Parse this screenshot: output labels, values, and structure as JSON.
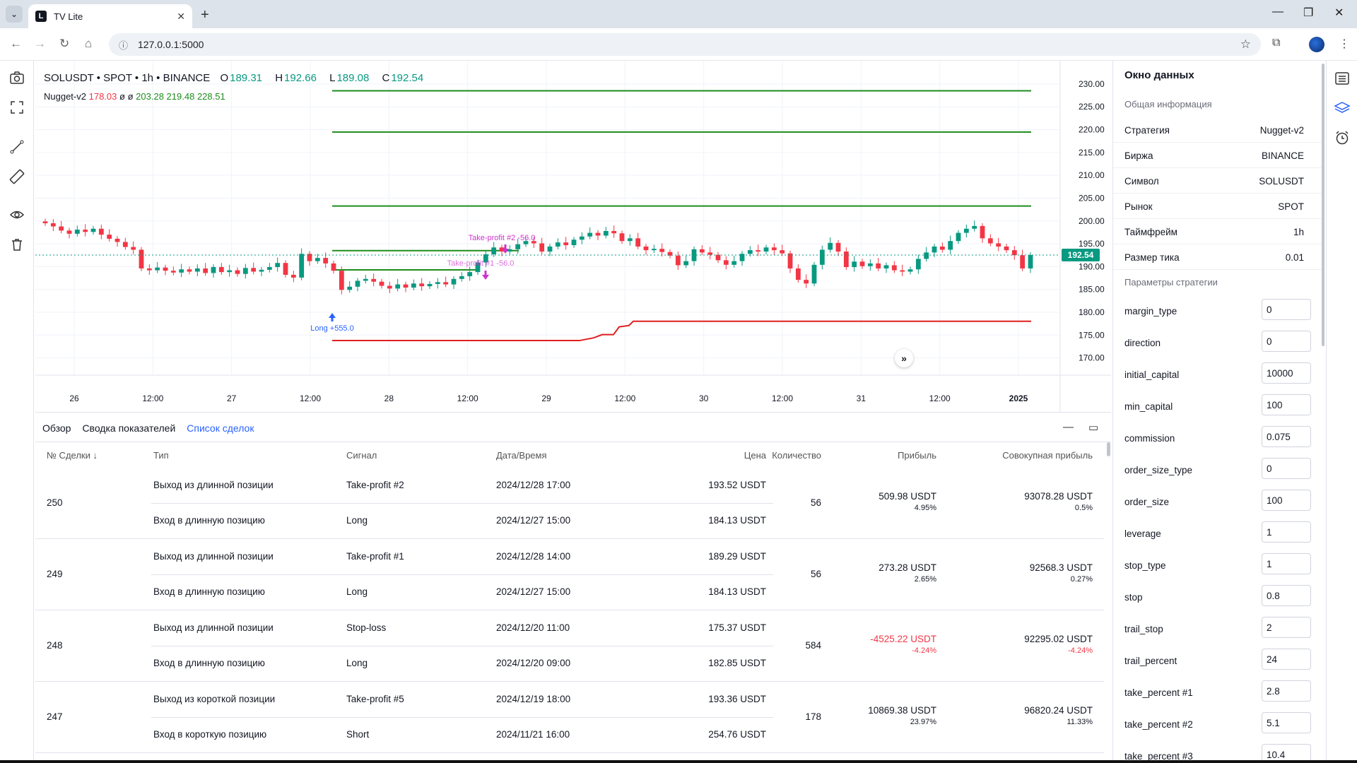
{
  "browser": {
    "tab_title": "TV Lite",
    "favicon_letter": "L",
    "url": "127.0.0.1:5000"
  },
  "chart": {
    "symbol_line": "SOLUSDT • SPOT • 1h • BINANCE",
    "ohlc": {
      "o_label": "O",
      "o": "189.31",
      "h_label": "H",
      "h": "192.66",
      "l_label": "L",
      "l": "189.08",
      "c_label": "C",
      "c": "192.54"
    },
    "indicator": {
      "name": "Nugget-v2",
      "v1": "178.03",
      "v2": "ø",
      "v3": "ø",
      "v4": "203.28",
      "v5": "219.48",
      "v6": "228.51"
    },
    "price_labels": [
      "230.00",
      "225.00",
      "220.00",
      "215.00",
      "210.00",
      "205.00",
      "200.00",
      "195.00",
      "190.00",
      "185.00",
      "180.00",
      "175.00",
      "170.00"
    ],
    "current_price": "192.54",
    "time_labels": [
      "26",
      "12:00",
      "27",
      "12:00",
      "28",
      "12:00",
      "29",
      "12:00",
      "30",
      "12:00",
      "31",
      "12:00",
      "2025"
    ],
    "markers": {
      "long": "Long +555.0",
      "tp2": "Take-profit #2 -56.0",
      "tp1": "Take-profit #1 -56.0"
    },
    "colors": {
      "up": "#089981",
      "down": "#f23645",
      "tp_line": "#1e8c1e",
      "stop_line": "#e01e1e",
      "marker": "#cc33cc",
      "long": "#2962ff"
    }
  },
  "chart_data": {
    "type": "candlestick",
    "y_range": [
      167,
      232
    ],
    "levels": [
      {
        "name": "tp_level_1",
        "value": 228.51
      },
      {
        "name": "tp_level_2",
        "value": 219.48
      },
      {
        "name": "tp_level_3",
        "value": 203.28
      },
      {
        "name": "tp_active_1",
        "value": 193.5
      },
      {
        "name": "tp_active_2",
        "value": 189.29
      },
      {
        "name": "stop",
        "value": 178.03
      }
    ],
    "closes": [
      199.5,
      198.8,
      197.9,
      197.2,
      198.1,
      197.6,
      198.3,
      197.0,
      196.1,
      195.4,
      194.3,
      193.7,
      189.6,
      189.2,
      189.8,
      189.1,
      188.7,
      189.4,
      188.9,
      189.6,
      188.6,
      189.9,
      188.8,
      189.2,
      188.4,
      189.7,
      188.9,
      189.3,
      189.9,
      190.8,
      188.2,
      187.6,
      192.8,
      191.2,
      191.9,
      190.7,
      189.1,
      184.9,
      185.6,
      186.9,
      187.3,
      186.7,
      185.8,
      185.2,
      186.1,
      185.4,
      186.3,
      185.7,
      186.2,
      186.6,
      186.1,
      187.3,
      187.9,
      188.8,
      190.9,
      192.7,
      194.2,
      193.3,
      193.8,
      194.9,
      195.6,
      195.1,
      193.3,
      194.4,
      195.3,
      194.7,
      195.9,
      196.6,
      197.4,
      196.8,
      197.8,
      197.3,
      195.6,
      196.2,
      194.4,
      193.6,
      193.9,
      193.2,
      192.4,
      190.3,
      191.2,
      193.8,
      193.1,
      192.6,
      191.4,
      190.4,
      191.2,
      192.8,
      193.6,
      193.3,
      194.2,
      193.6,
      192.9,
      189.6,
      187.1,
      186.3,
      190.4,
      193.7,
      195.2,
      193.3,
      189.9,
      191.1,
      190.1,
      190.7,
      189.6,
      190.3,
      189.2,
      188.9,
      189.4,
      191.7,
      193.1,
      194.4,
      193.7,
      195.6,
      197.4,
      198.3,
      198.9,
      196.2,
      195.1,
      194.4,
      193.6,
      192.5,
      189.6,
      192.54
    ]
  },
  "panel": {
    "tabs": [
      "Обзор",
      "Сводка показателей",
      "Список сделок"
    ],
    "headers": {
      "num": "№ Сделки ↓",
      "type": "Тип",
      "signal": "Сигнал",
      "datetime": "Дата/Время",
      "price": "Цена",
      "qty": "Количество",
      "profit": "Прибыль",
      "cum": "Совокупная прибыль"
    },
    "trades": [
      {
        "num": "250",
        "exit_type": "Выход из длинной позиции",
        "exit_signal": "Take-profit #2",
        "exit_time": "2024/12/28 17:00",
        "exit_price": "193.52 USDT",
        "entry_type": "Вход в длинную позицию",
        "entry_signal": "Long",
        "entry_time": "2024/12/27 15:00",
        "entry_price": "184.13 USDT",
        "qty": "56",
        "profit": "509.98 USDT",
        "profit_pct": "4.95%",
        "cum": "93078.28 USDT",
        "cum_pct": "0.5%",
        "neg": false
      },
      {
        "num": "249",
        "exit_type": "Выход из длинной позиции",
        "exit_signal": "Take-profit #1",
        "exit_time": "2024/12/28 14:00",
        "exit_price": "189.29 USDT",
        "entry_type": "Вход в длинную позицию",
        "entry_signal": "Long",
        "entry_time": "2024/12/27 15:00",
        "entry_price": "184.13 USDT",
        "qty": "56",
        "profit": "273.28 USDT",
        "profit_pct": "2.65%",
        "cum": "92568.3 USDT",
        "cum_pct": "0.27%",
        "neg": false
      },
      {
        "num": "248",
        "exit_type": "Выход из длинной позиции",
        "exit_signal": "Stop-loss",
        "exit_time": "2024/12/20 11:00",
        "exit_price": "175.37 USDT",
        "entry_type": "Вход в длинную позицию",
        "entry_signal": "Long",
        "entry_time": "2024/12/20 09:00",
        "entry_price": "182.85 USDT",
        "qty": "584",
        "profit": "-4525.22 USDT",
        "profit_pct": "-4.24%",
        "cum": "92295.02 USDT",
        "cum_pct": "-4.24%",
        "neg": true
      },
      {
        "num": "247",
        "exit_type": "Выход из короткой позиции",
        "exit_signal": "Take-profit #5",
        "exit_time": "2024/12/19 18:00",
        "exit_price": "193.36 USDT",
        "entry_type": "Вход в короткую позицию",
        "entry_signal": "Short",
        "entry_time": "2024/11/21 16:00",
        "entry_price": "254.76 USDT",
        "qty": "178",
        "profit": "10869.38 USDT",
        "profit_pct": "23.97%",
        "cum": "96820.24 USDT",
        "cum_pct": "11.33%",
        "neg": false
      }
    ]
  },
  "datawindow": {
    "title": "Окно данных",
    "general_section": "Общая информация",
    "general": [
      {
        "key": "Стратегия",
        "value": "Nugget-v2"
      },
      {
        "key": "Биржа",
        "value": "BINANCE"
      },
      {
        "key": "Символ",
        "value": "SOLUSDT"
      },
      {
        "key": "Рынок",
        "value": "SPOT"
      },
      {
        "key": "Таймфрейм",
        "value": "1h"
      },
      {
        "key": "Размер тика",
        "value": "0.01"
      }
    ],
    "params_section": "Параметры стратегии",
    "params": [
      {
        "key": "margin_type",
        "value": "0"
      },
      {
        "key": "direction",
        "value": "0"
      },
      {
        "key": "initial_capital",
        "value": "10000"
      },
      {
        "key": "min_capital",
        "value": "100"
      },
      {
        "key": "commission",
        "value": "0.075"
      },
      {
        "key": "order_size_type",
        "value": "0"
      },
      {
        "key": "order_size",
        "value": "100"
      },
      {
        "key": "leverage",
        "value": "1"
      },
      {
        "key": "stop_type",
        "value": "1"
      },
      {
        "key": "stop",
        "value": "0.8"
      },
      {
        "key": "trail_stop",
        "value": "2"
      },
      {
        "key": "trail_percent",
        "value": "24"
      },
      {
        "key": "take_percent #1",
        "value": "2.8"
      },
      {
        "key": "take_percent #2",
        "value": "5.1"
      },
      {
        "key": "take_percent #3",
        "value": "10.4"
      }
    ]
  }
}
